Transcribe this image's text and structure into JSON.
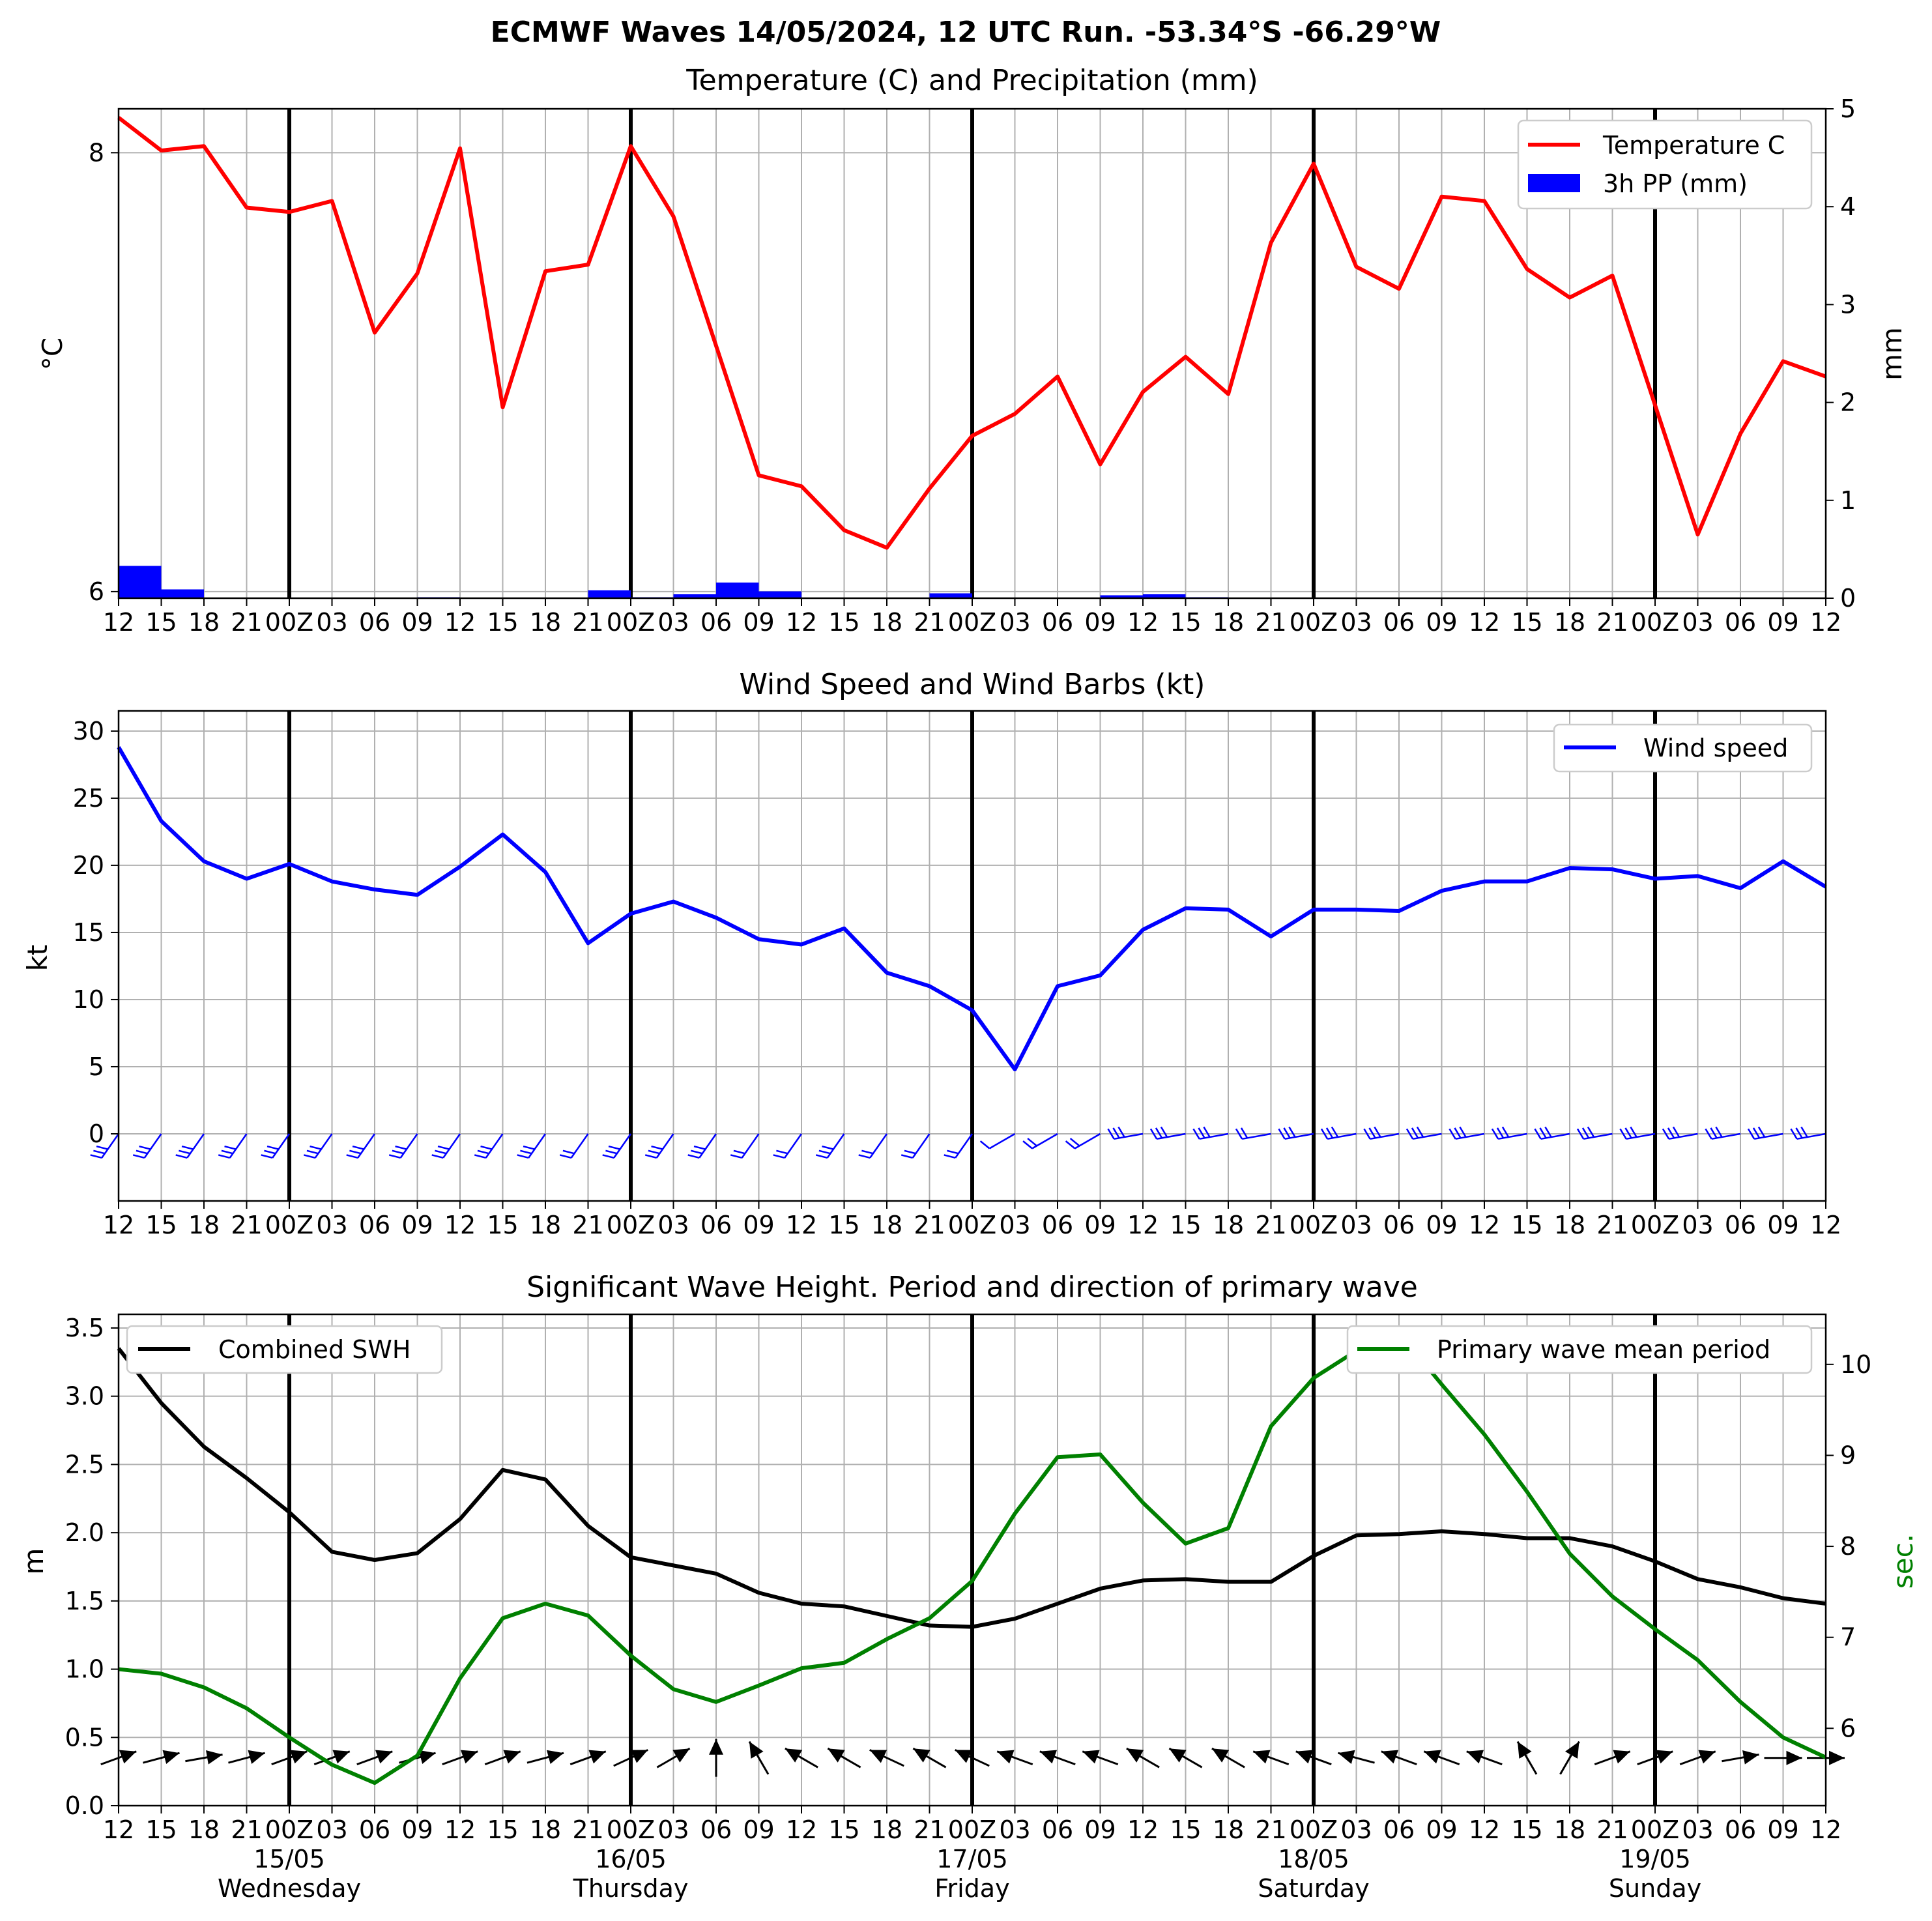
{
  "suptitle": "ECMWF Waves 14/05/2024, 12 UTC Run. -53.34°S -66.29°W",
  "x_tick_labels": [
    "12",
    "15",
    "18",
    "21",
    "00Z",
    "03",
    "06",
    "09",
    "12",
    "15",
    "18",
    "21",
    "00Z",
    "03",
    "06",
    "09",
    "12",
    "15",
    "18",
    "21",
    "00Z",
    "03",
    "06",
    "09",
    "12",
    "15",
    "18",
    "21",
    "00Z",
    "03",
    "06",
    "09",
    "12",
    "15",
    "18",
    "21",
    "00Z",
    "03",
    "06",
    "09",
    "12"
  ],
  "day_labels": [
    {
      "date": "15/05",
      "weekday": "Wednesday"
    },
    {
      "date": "16/05",
      "weekday": "Thursday"
    },
    {
      "date": "17/05",
      "weekday": "Friday"
    },
    {
      "date": "18/05",
      "weekday": "Saturday"
    },
    {
      "date": "19/05",
      "weekday": "Sunday"
    }
  ],
  "colors": {
    "temperature": "#ff0000",
    "precip": "#0000ff",
    "wind": "#0000ff",
    "swh": "#000000",
    "period": "#008000",
    "grid": "#b0b0b0",
    "day_line": "#000000"
  },
  "chart_data": [
    {
      "type": "line",
      "title": "Temperature (C) and Precipitation (mm)",
      "ylabel": "$^\\circ$C",
      "y2label": "mm",
      "ylim": [
        5.97,
        8.2
      ],
      "y2lim": [
        0,
        5
      ],
      "yticks": [
        6,
        8
      ],
      "y2ticks": [
        0,
        1,
        2,
        3,
        4,
        5
      ],
      "series": [
        {
          "name": "Temperature C",
          "values": [
            8.16,
            8.01,
            8.03,
            7.75,
            7.73,
            7.78,
            7.18,
            7.45,
            8.02,
            6.84,
            7.46,
            7.49,
            8.03,
            7.71,
            7.12,
            6.53,
            6.48,
            6.28,
            6.2,
            6.47,
            6.71,
            6.81,
            6.98,
            6.58,
            6.91,
            7.07,
            6.9,
            7.59,
            7.95,
            7.48,
            7.38,
            7.8,
            7.78,
            7.47,
            7.34,
            7.44,
            6.85,
            6.26,
            6.72,
            7.05,
            6.98
          ]
        },
        {
          "name": "3h PP (mm)",
          "type": "bar",
          "values": [
            0.33,
            0.09,
            0,
            0,
            0,
            0,
            0,
            0.01,
            0,
            0,
            0,
            0.08,
            0.01,
            0.04,
            0.16,
            0.07,
            0,
            0,
            0,
            0.05,
            0,
            0,
            0,
            0.03,
            0.04,
            0.01,
            0,
            0,
            0,
            0,
            0,
            0,
            0,
            0,
            0,
            0,
            0,
            0,
            0,
            0
          ]
        }
      ],
      "legend": "upper right"
    },
    {
      "type": "line",
      "title": "Wind Speed and Wind Barbs (kt)",
      "ylabel": "kt",
      "ylim": [
        -5,
        31.5
      ],
      "yticks": [
        0,
        5,
        10,
        15,
        20,
        25,
        30
      ],
      "series": [
        {
          "name": "Wind speed",
          "values": [
            28.8,
            23.3,
            20.3,
            19.0,
            20.1,
            18.8,
            18.2,
            17.8,
            19.9,
            22.3,
            19.5,
            14.2,
            16.4,
            17.3,
            16.1,
            14.5,
            14.1,
            15.3,
            12.0,
            11.0,
            9.2,
            4.8,
            11.0,
            11.8,
            15.2,
            16.8,
            16.7,
            14.7,
            16.7,
            16.7,
            16.6,
            18.1,
            18.8,
            18.8,
            19.8,
            19.7,
            19.0,
            19.2,
            18.3,
            20.3,
            18.4
          ]
        }
      ],
      "barbs": "wind barbs along 0 kt line, southwesterly to westerly",
      "legend": "upper right"
    },
    {
      "type": "line",
      "title": "Significant Wave Height. Period and direction of primary wave",
      "ylabel": "m",
      "y2label": "sec.",
      "ylim": [
        0,
        3.6
      ],
      "y2lim": [
        5.15,
        10.55
      ],
      "yticks": [
        0.0,
        0.5,
        1.0,
        1.5,
        2.0,
        2.5,
        3.0,
        3.5
      ],
      "y2ticks": [
        6,
        7,
        8,
        9,
        10
      ],
      "series": [
        {
          "name": "Combined SWH",
          "values": [
            3.35,
            2.95,
            2.63,
            2.4,
            2.15,
            1.86,
            1.8,
            1.85,
            2.1,
            2.46,
            2.39,
            2.05,
            1.82,
            1.76,
            1.7,
            1.56,
            1.48,
            1.46,
            1.39,
            1.32,
            1.31,
            1.37,
            1.48,
            1.59,
            1.65,
            1.66,
            1.64,
            1.64,
            1.83,
            1.98,
            1.99,
            2.01,
            1.99,
            1.96,
            1.96,
            1.9,
            1.79,
            1.66,
            1.6,
            1.52,
            1.48
          ]
        },
        {
          "name": "Primary wave mean period",
          "axis": "right",
          "values": [
            6.65,
            6.6,
            6.45,
            6.22,
            5.9,
            5.6,
            5.4,
            5.7,
            6.55,
            7.21,
            7.37,
            7.24,
            6.8,
            6.43,
            6.29,
            6.47,
            6.66,
            6.72,
            6.98,
            7.21,
            7.62,
            8.36,
            8.98,
            9.01,
            8.48,
            8.03,
            8.2,
            9.32,
            9.85,
            10.15,
            10.35,
            9.78,
            9.23,
            8.6,
            7.92,
            7.45,
            7.09,
            6.75,
            6.29,
            5.9,
            5.68
          ]
        }
      ],
      "wave_direction_arrows": [
        70,
        75,
        80,
        75,
        70,
        70,
        70,
        75,
        70,
        70,
        75,
        70,
        65,
        60,
        0,
        -30,
        -60,
        -60,
        -65,
        -60,
        -65,
        -70,
        -70,
        -70,
        -60,
        -60,
        -60,
        -70,
        -70,
        -75,
        -70,
        -70,
        -70,
        -30,
        30,
        70,
        70,
        70,
        80,
        90,
        90
      ],
      "legend": [
        "upper left",
        "upper right"
      ]
    }
  ]
}
